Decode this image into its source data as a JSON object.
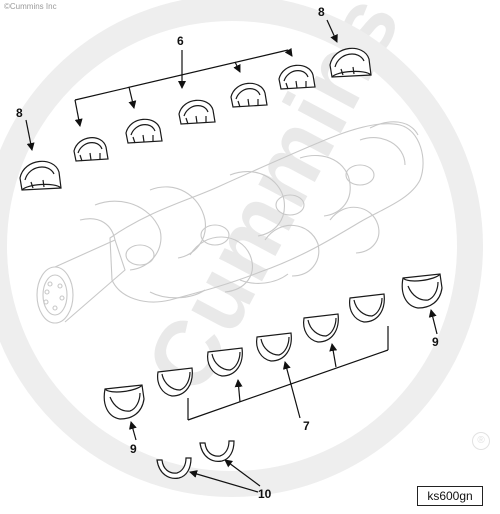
{
  "copyright": "©Cummins Inc",
  "watermark": "Cummins",
  "callouts": {
    "bearing_top": "6",
    "bearing_bottom": "7",
    "thrust_top_left": "8",
    "thrust_top_right": "8",
    "thrust_bottom_left": "9",
    "thrust_bottom_right": "9",
    "thrust_washers": "10"
  },
  "figure_id": "ks600gn",
  "registered_mark": "®"
}
